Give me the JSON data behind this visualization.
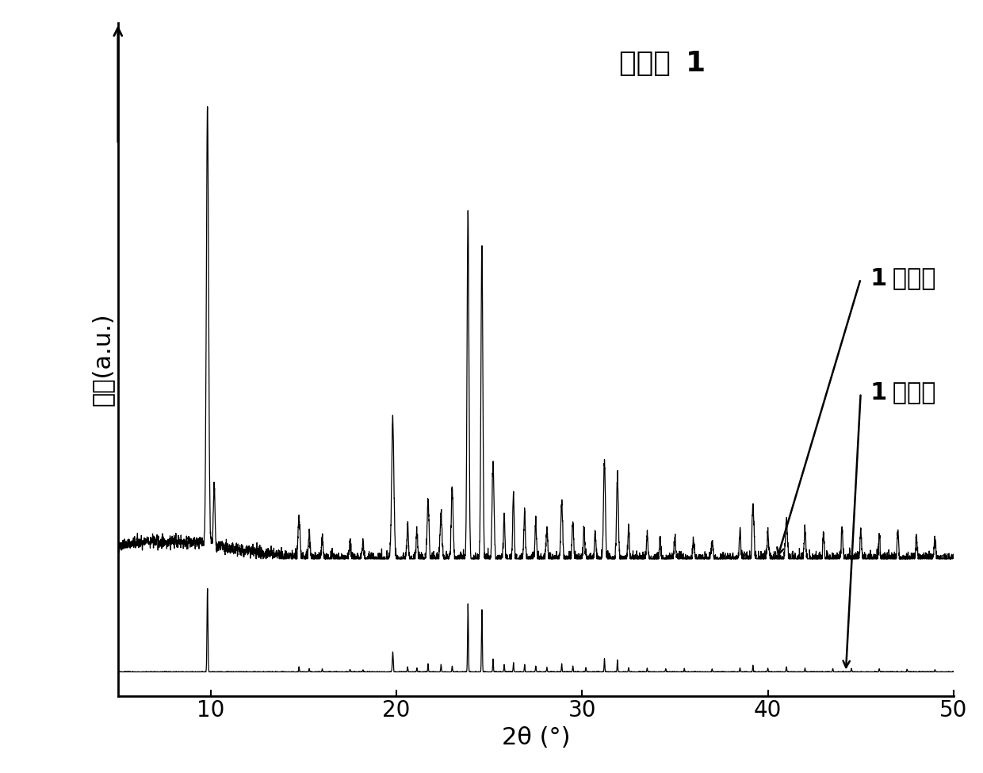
{
  "title_normal": "化合物 ",
  "title_bold": "1",
  "xlabel": "2θ (°)",
  "ylabel": "强度(a.u.)",
  "xlim": [
    5,
    50
  ],
  "background_color": "#ffffff",
  "line_color": "#000000",
  "title_fontsize": 26,
  "axis_label_fontsize": 22,
  "tick_fontsize": 20,
  "annotation_fontsize": 22,
  "xticks": [
    10,
    20,
    30,
    40,
    50
  ],
  "label_exp_bold": "1",
  "label_exp_normal": " 实验值",
  "label_theo_bold": "1",
  "label_theo_normal": " 理论值"
}
